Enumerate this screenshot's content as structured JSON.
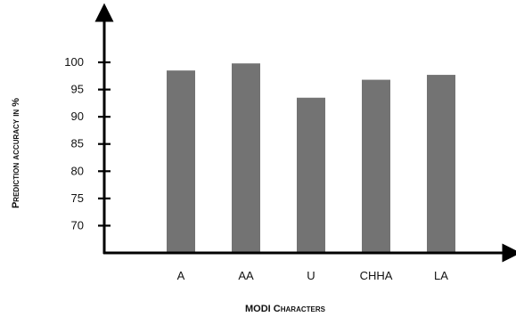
{
  "chart_data": {
    "type": "bar",
    "categories": [
      "A",
      "AA",
      "U",
      "CHHA",
      "LA"
    ],
    "values": [
      98.5,
      99.8,
      93.5,
      96.8,
      97.7
    ],
    "xlabel": "MODI Characters",
    "ylabel": "Prediction accuracy in %",
    "ylim": [
      65,
      100
    ],
    "yticks": [
      70,
      75,
      80,
      85,
      90,
      95,
      100
    ],
    "grid": false,
    "legend": "none"
  },
  "colors": {
    "bar": "#737373",
    "axis": "#000000"
  }
}
